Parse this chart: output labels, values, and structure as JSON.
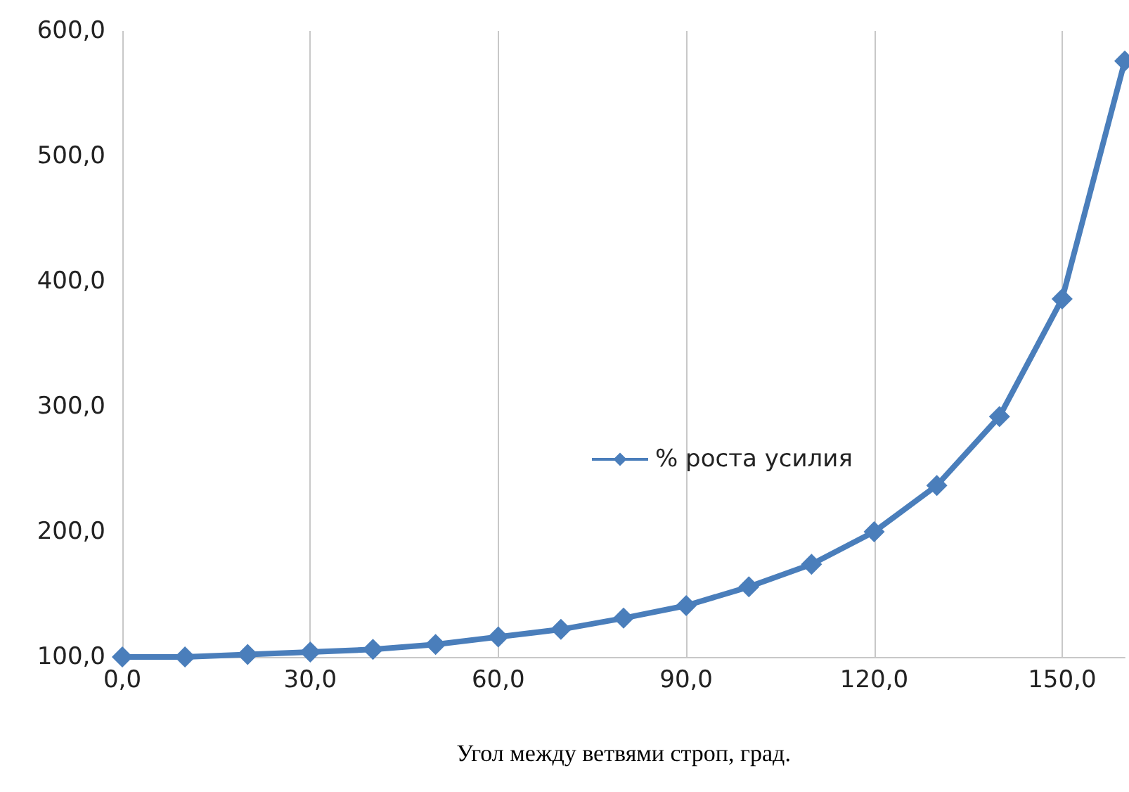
{
  "chart_data": {
    "type": "line",
    "xlabel": "Угол между ветвями строп, град.",
    "x": [
      0,
      10,
      20,
      30,
      40,
      50,
      60,
      70,
      80,
      90,
      100,
      110,
      120,
      130,
      140,
      150,
      160
    ],
    "series": [
      {
        "name": "% роста усилия",
        "color": "#4a7ebb",
        "values": [
          100,
          100,
          102,
          104,
          106,
          110,
          116,
          122,
          131,
          141,
          156,
          174,
          200,
          237,
          292,
          386,
          576
        ]
      }
    ],
    "xlim": [
      0,
      160
    ],
    "xticks": [
      {
        "value": 0,
        "label": "0,0"
      },
      {
        "value": 30,
        "label": "30,0"
      },
      {
        "value": 60,
        "label": "60,0"
      },
      {
        "value": 90,
        "label": "90,0"
      },
      {
        "value": 120,
        "label": "120,0"
      },
      {
        "value": 150,
        "label": "150,0"
      }
    ],
    "ylim": [
      100,
      600
    ],
    "yticks": [
      {
        "value": 100,
        "label": "100,0"
      },
      {
        "value": 200,
        "label": "200,0"
      },
      {
        "value": 300,
        "label": "300,0"
      },
      {
        "value": 400,
        "label": "400,0"
      },
      {
        "value": 500,
        "label": "500,0"
      },
      {
        "value": 600,
        "label": "600,0"
      }
    ],
    "grid": "x",
    "legend": "center",
    "marker": "diamond",
    "line_style": "solid"
  }
}
